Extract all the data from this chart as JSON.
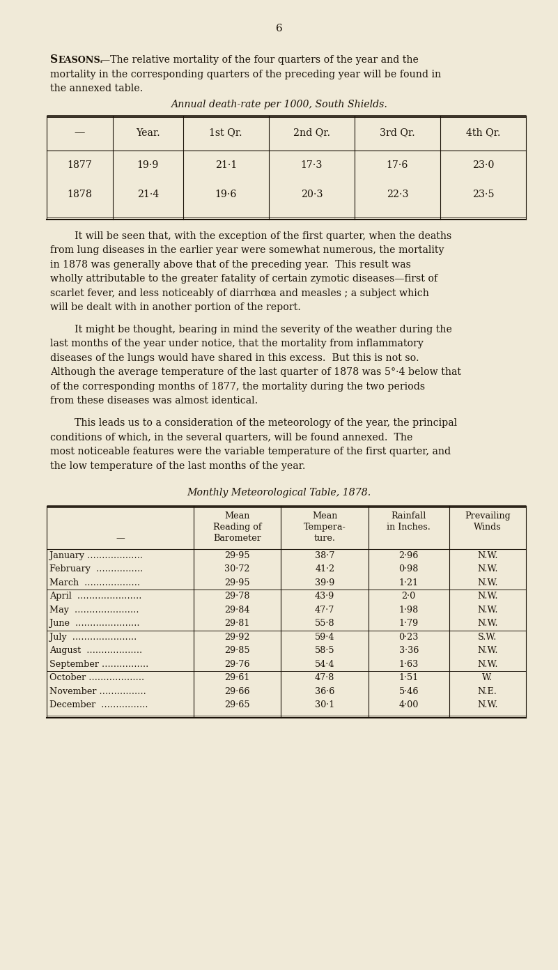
{
  "bg_color": "#f0ead8",
  "text_color": "#1a1208",
  "page_number": "6",
  "seasons_bold": "Seasons.",
  "seasons_rest": "—The relative mortality of the four quarters of the year and the",
  "intro_line2": "mortality in the corresponding quarters of the preceding year will be found in",
  "intro_line3": "the annexed table.",
  "table1_title": "Annual death-rate per 1000, South Shields.",
  "table1_headers": [
    "",
    "Year.",
    "1st Qr.",
    "2nd Qr.",
    "3rd Qr.",
    "4th Qr."
  ],
  "table1_rows": [
    [
      "1877",
      "19·9",
      "21·1",
      "17·3",
      "17·6",
      "23·0"
    ],
    [
      "1878",
      "21·4",
      "19·6",
      "20·3",
      "22·3",
      "23·5"
    ]
  ],
  "para1_lines": [
    "It will be seen that, with the exception of the first quarter, when the deaths",
    "from lung diseases in the earlier year were somewhat numerous, the mortality",
    "in 1878 was generally above that of the preceding year.  This result was",
    "wholly attributable to the greater fatality of certain zymotic diseases—first of",
    "scarlet fever, and less noticeably of diarrhœa and measles ; a subject which",
    "will be dealt with in another portion of the report."
  ],
  "para2_lines": [
    "It might be thought, bearing in mind the severity of the weather during the",
    "last months of the year under notice, that the mortality from inflammatory",
    "diseases of the lungs would have shared in this excess.  But this is not so.",
    "Although the average temperature of the last quarter of 1878 was 5°·4 below that",
    "of the corresponding months of 1877, the mortality during the two periods",
    "from these diseases was almost identical."
  ],
  "para3_lines": [
    "This leads us to a consideration of the meteorology of the year, the principal",
    "conditions of which, in the several quarters, will be found annexed.  The",
    "most noticeable features were the variable temperature of the first quarter, and",
    "the low temperature of the last months of the year."
  ],
  "table2_title": "Monthly Meteorological Table, 1878.",
  "table2_headers_line1": [
    "",
    "Mean",
    "Mean",
    "Rainfall",
    "Prevailing"
  ],
  "table2_headers_line2": [
    "",
    "Reading of",
    "Tempera-",
    "in Inches.",
    "Winds"
  ],
  "table2_headers_line3": [
    "—",
    "Barometer",
    "ture.",
    "",
    ""
  ],
  "table2_months": [
    "January ……………….",
    "February  …………….",
    "March  ……………….",
    "April  ………………….",
    "May  ………………….",
    "June  ………………….",
    "July  ………………….",
    "August  ……………….",
    "September …………….",
    "October ……………….",
    "November …………….",
    "December  ……………."
  ],
  "table2_baro": [
    "29·95",
    "30·72",
    "29·95",
    "29·78",
    "29·84",
    "29·81",
    "29·92",
    "29·85",
    "29·76",
    "29·61",
    "29·66",
    "29·65"
  ],
  "table2_temp": [
    "38·7",
    "41·2",
    "39·9",
    "43·9",
    "47·7",
    "55·8",
    "59·4",
    "58·5",
    "54·4",
    "47·8",
    "36·6",
    "30·1"
  ],
  "table2_rain": [
    "2·96",
    "0·98",
    "1·21",
    "2·0",
    "1·98",
    "1·79",
    "0·23",
    "3·36",
    "1·63",
    "1·51",
    "5·46",
    "4·00"
  ],
  "table2_winds": [
    "N.W.",
    "N.W.",
    "N.W.",
    "N.W.",
    "N.W.",
    "N.W.",
    "S.W.",
    "N.W.",
    "N.W.",
    "W.",
    "N.E.",
    "N.W."
  ],
  "table2_group_seps": [
    3,
    6,
    9
  ],
  "lmargin": 0.72,
  "rmargin": 7.5,
  "text_indent": 0.35
}
